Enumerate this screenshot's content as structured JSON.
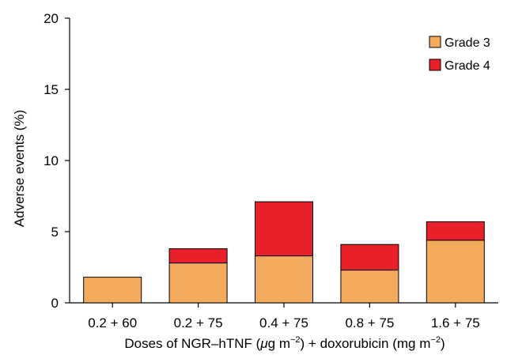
{
  "chart_data": {
    "type": "bar",
    "stacked": true,
    "title": "",
    "ylabel": "Adverse events (%)",
    "xlabel_parts": {
      "pre": "Doses of NGR–hTNF (",
      "mu": "μ",
      "unit1": "g m",
      "exp1": "−2",
      "mid": ") + doxorubicin (mg m",
      "exp2": "−2",
      "post": ")"
    },
    "categories": [
      "0.2 + 60",
      "0.2 + 75",
      "0.4 + 75",
      "0.8 + 75",
      "1.6 + 75"
    ],
    "ylim": [
      0,
      20
    ],
    "yticks": [
      "0",
      "5",
      "10",
      "15",
      "20"
    ],
    "grid": false,
    "legend_position": "top-right",
    "series": [
      {
        "name": "Grade 3",
        "color": "#F5AB5E",
        "values": [
          1.8,
          2.8,
          3.3,
          2.3,
          4.4
        ]
      },
      {
        "name": "Grade 4",
        "color": "#E8202A",
        "values": [
          0.0,
          1.0,
          3.8,
          1.8,
          1.3
        ]
      }
    ]
  }
}
